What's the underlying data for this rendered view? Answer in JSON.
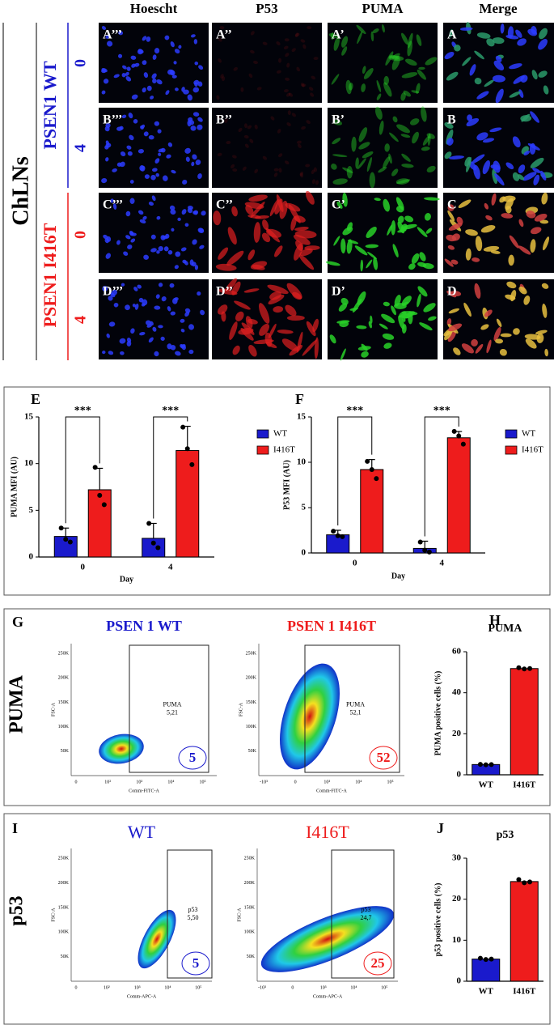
{
  "microscopy": {
    "cell_line": "ChLNs",
    "columns": [
      "Hoescht",
      "P53",
      "PUMA",
      "Merge"
    ],
    "groups": [
      {
        "name": "PSEN1 WT",
        "days": [
          "0",
          "4"
        ]
      },
      {
        "name": "PSEN1 I416T",
        "days": [
          "0",
          "4"
        ]
      }
    ],
    "panels": [
      [
        "A’’’",
        "A’’",
        "A’",
        "A"
      ],
      [
        "B’’’",
        "B’’",
        "B’",
        "B"
      ],
      [
        "C’’’",
        "C’’",
        "C’",
        "C"
      ],
      [
        "D’’’",
        "D’’",
        "D’",
        "D"
      ]
    ]
  },
  "flow": [
    {
      "panel": "G",
      "row_label": "PUMA",
      "plots": [
        {
          "title": "PSEN 1 WT",
          "gate": "PUMA",
          "gate_value": "5,21",
          "count": "5",
          "xlabel": "Comm-FITC-A",
          "ylabel": "FSC-A",
          "xticks": [
            "0",
            "10²",
            "10³",
            "10⁴",
            "10⁵"
          ],
          "yticks": [
            "50K",
            "100K",
            "150K",
            "200K",
            "250K"
          ]
        },
        {
          "title": "PSEN 1 I416T",
          "gate": "PUMA",
          "gate_value": "52,1",
          "count": "52",
          "xlabel": "Comm-FITC-A",
          "ylabel": "FSC-A",
          "xticks": [
            "-10³",
            "0",
            "10³",
            "10⁴",
            "10⁵"
          ],
          "yticks": [
            "50K",
            "100K",
            "150K",
            "200K",
            "250K"
          ]
        }
      ]
    },
    {
      "panel": "I",
      "row_label": "p53",
      "plots": [
        {
          "title": "WT",
          "gate": "p53",
          "gate_value": "5,50",
          "count": "5",
          "xlabel": "Comm-APC-A",
          "ylabel": "FSC-A",
          "xticks": [
            "0",
            "10²",
            "10³",
            "10⁴",
            "10⁵"
          ],
          "yticks": [
            "50K",
            "100K",
            "150K",
            "200K",
            "250K"
          ]
        },
        {
          "title": "I416T",
          "gate": "p53",
          "gate_value": "24,7",
          "count": "25",
          "xlabel": "Comm-APC-A",
          "ylabel": "FSC-A",
          "xticks": [
            "-10³",
            "0",
            "10³",
            "10⁴",
            "10⁵"
          ],
          "yticks": [
            "50K",
            "100K",
            "150K",
            "200K",
            "250K"
          ]
        }
      ]
    }
  ],
  "chart_data": [
    {
      "type": "bar",
      "panel": "E",
      "ylabel": "PUMA MFI (AU)",
      "xlabel": "Day",
      "categories": [
        "0",
        "4"
      ],
      "ylim": [
        0,
        15
      ],
      "yticks": [
        0,
        5,
        10,
        15
      ],
      "significance": [
        "***",
        "***"
      ],
      "series": [
        {
          "name": "WT",
          "color": "#1a1acc",
          "values": [
            2.2,
            2.0
          ],
          "errors": [
            0.9,
            1.6
          ],
          "points": [
            [
              3.1,
              1.9,
              1.6
            ],
            [
              3.6,
              1.5,
              1.0
            ]
          ]
        },
        {
          "name": "I416T",
          "color": "#ee1c1c",
          "values": [
            7.2,
            11.4
          ],
          "errors": [
            2.3,
            2.6
          ],
          "points": [
            [
              9.6,
              6.6,
              5.6
            ],
            [
              13.9,
              11.6,
              9.9
            ]
          ]
        }
      ]
    },
    {
      "type": "bar",
      "panel": "F",
      "ylabel": "P53 MFI (AU)",
      "xlabel": "Day",
      "categories": [
        "0",
        "4"
      ],
      "ylim": [
        0,
        15
      ],
      "yticks": [
        0,
        5,
        10,
        15
      ],
      "significance": [
        "***",
        "***"
      ],
      "series": [
        {
          "name": "WT",
          "color": "#1a1acc",
          "values": [
            2.0,
            0.5
          ],
          "errors": [
            0.5,
            0.8
          ],
          "points": [
            [
              2.4,
              1.9,
              1.8
            ],
            [
              1.2,
              0.3,
              0.1
            ]
          ]
        },
        {
          "name": "I416T",
          "color": "#ee1c1c",
          "values": [
            9.2,
            12.7
          ],
          "errors": [
            1.1,
            0.7
          ],
          "points": [
            [
              10.1,
              9.2,
              8.2
            ],
            [
              13.4,
              12.9,
              12.0
            ]
          ]
        }
      ]
    },
    {
      "type": "bar",
      "panel": "H",
      "title": "PUMA",
      "ylabel": "PUMA positive cells (%)",
      "categories": [
        "WT",
        "I416T"
      ],
      "values": [
        5,
        51.8
      ],
      "colors": [
        "#1a1acc",
        "#ee1c1c"
      ],
      "points": [
        [
          5.1,
          4.9,
          5.0
        ],
        [
          52.2,
          51.6,
          51.8
        ]
      ],
      "ylim": [
        0,
        60
      ],
      "yticks": [
        0,
        20,
        40,
        60
      ]
    },
    {
      "type": "bar",
      "panel": "J",
      "title": "p53",
      "ylabel": "p53 positive cells (%)",
      "categories": [
        "WT",
        "I416T"
      ],
      "values": [
        5.4,
        24.3
      ],
      "colors": [
        "#1a1acc",
        "#ee1c1c"
      ],
      "points": [
        [
          5.6,
          5.3,
          5.4
        ],
        [
          24.8,
          24.0,
          24.2
        ]
      ],
      "ylim": [
        0,
        30
      ],
      "yticks": [
        0,
        10,
        20,
        30
      ]
    }
  ]
}
